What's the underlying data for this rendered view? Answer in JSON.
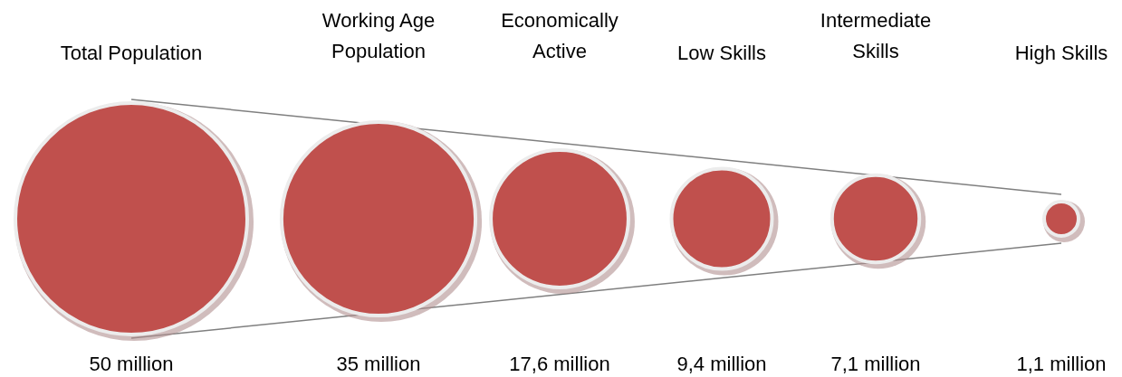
{
  "chart_data": {
    "type": "other",
    "categories": [
      "Total Population",
      "Working Age Population",
      "Economically Active",
      "Low Skills",
      "Intermediate Skills",
      "High Skills"
    ],
    "values": [
      50,
      35,
      17.6,
      9.4,
      7.1,
      1.1
    ],
    "value_labels": [
      "50 million",
      "35 million",
      "17,6 million",
      "9,4 million",
      "7,1 million",
      "1,1 million"
    ],
    "color": "#c0504d"
  }
}
